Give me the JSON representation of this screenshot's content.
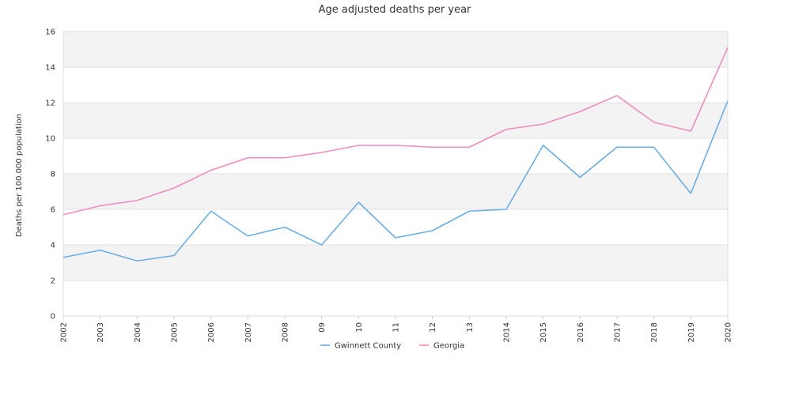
{
  "chart_data": {
    "type": "line",
    "title": "Age adjusted deaths per year",
    "xlabel": "",
    "ylabel": "Deaths per 100.000 population",
    "categories": [
      "2002",
      "2003",
      "2004",
      "2005",
      "2006",
      "2007",
      "2008",
      "09",
      "10",
      "11",
      "12",
      "13",
      "2014",
      "2015",
      "2016",
      "2017",
      "2018",
      "2019",
      "2020"
    ],
    "ylim": [
      0,
      16
    ],
    "yticks": [
      0,
      2,
      4,
      6,
      8,
      10,
      12,
      14,
      16
    ],
    "grid": "alternating horizontal bands",
    "legend_position": "bottom",
    "series": [
      {
        "name": "Gwinnett County",
        "color": "#6aaee8",
        "values": [
          3.3,
          3.7,
          3.1,
          3.4,
          5.9,
          4.5,
          5.0,
          4.0,
          6.4,
          4.4,
          4.8,
          5.9,
          6.0,
          9.6,
          7.8,
          9.5,
          9.5,
          6.9,
          12.1
        ]
      },
      {
        "name": "Georgia",
        "color": "#f08cbf",
        "values": [
          5.7,
          6.2,
          6.5,
          7.2,
          8.2,
          8.9,
          8.9,
          9.2,
          9.6,
          9.6,
          9.5,
          9.5,
          10.5,
          10.8,
          11.5,
          12.4,
          10.9,
          10.4,
          15.1
        ]
      }
    ]
  }
}
